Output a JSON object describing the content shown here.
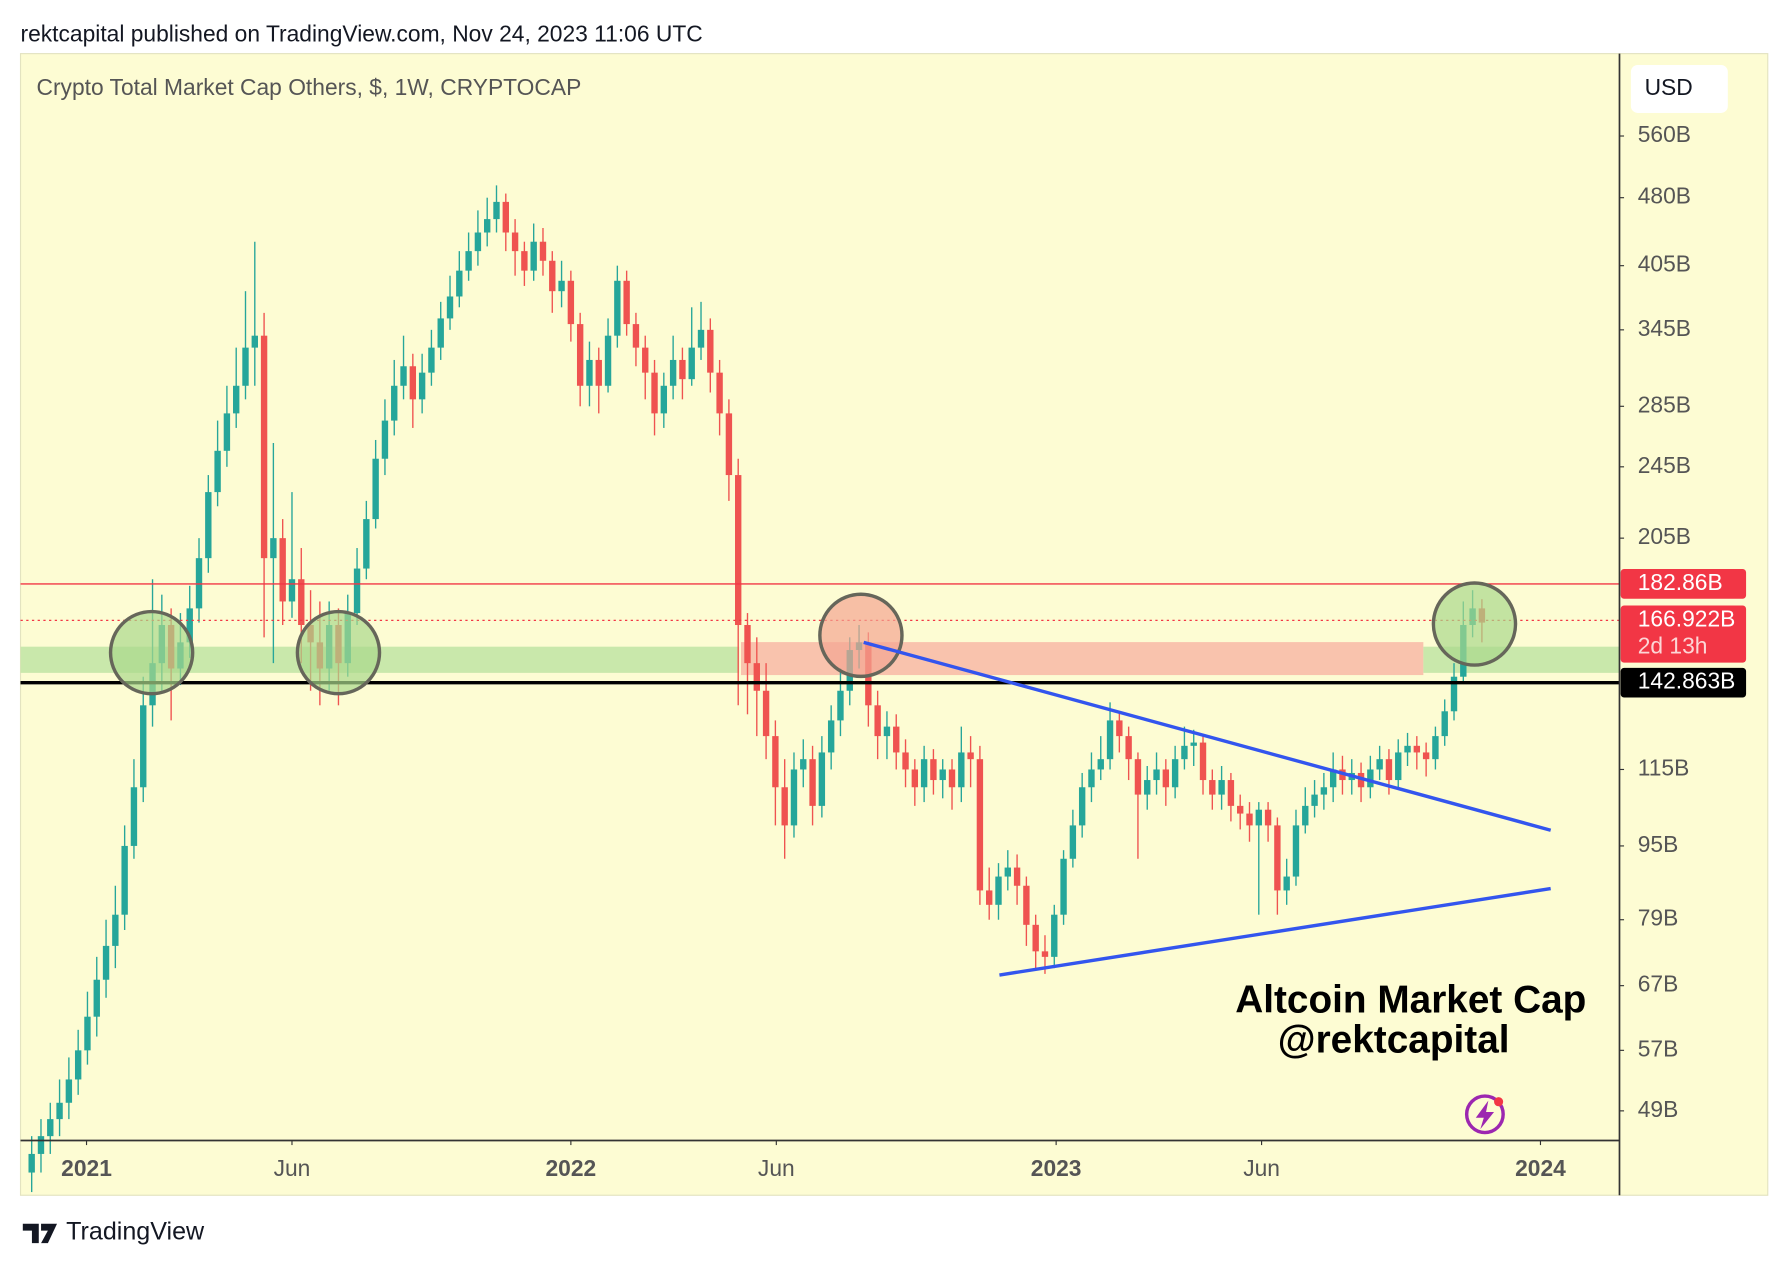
{
  "header": "rektcapital published on TradingView.com, Nov 24, 2023 11:06 UTC",
  "footer": "TradingView",
  "chart_data": {
    "type": "candlestick",
    "title": "Crypto Total Market Cap Others, $, 1W, CRYPTOCAP",
    "currency": "USD",
    "categories": [
      null,
      null,
      null,
      null,
      null,
      null,
      null,
      null,
      null,
      null,
      null,
      null,
      null,
      null,
      null,
      null,
      null,
      null,
      null,
      null,
      null,
      null,
      null,
      null,
      null,
      null,
      null,
      null,
      null,
      null,
      null,
      null,
      null,
      null,
      null,
      null,
      null,
      null,
      null,
      null,
      null,
      null,
      null,
      null,
      null,
      null,
      null,
      null,
      null,
      null,
      null,
      null,
      null,
      null,
      null,
      null,
      null,
      null,
      null,
      null,
      null,
      null,
      null,
      null,
      null,
      null,
      null,
      null,
      null,
      null,
      null,
      null,
      null,
      null,
      null,
      null,
      null,
      null,
      null,
      null,
      null,
      null,
      null,
      null,
      null,
      null,
      null,
      null,
      null,
      null,
      null,
      null,
      null,
      null,
      null,
      null,
      null,
      null,
      null,
      null,
      null,
      null,
      null,
      null,
      null,
      null,
      null,
      null,
      null,
      null,
      null,
      null,
      null,
      null,
      null,
      null,
      null,
      null,
      null,
      null,
      null,
      null,
      null,
      null,
      null,
      null,
      null,
      null,
      null,
      null,
      null,
      null,
      null,
      null,
      null,
      null,
      null,
      null,
      null,
      null,
      null,
      null,
      null,
      null,
      null,
      null,
      null,
      null,
      null,
      null,
      null,
      null,
      null,
      null,
      null,
      null,
      null
    ],
    "open": [
      42,
      44,
      46,
      48,
      50,
      53,
      57,
      62,
      68,
      74,
      80,
      95,
      110,
      135,
      150,
      165,
      148,
      158,
      172,
      195,
      230,
      255,
      280,
      300,
      330,
      340,
      195,
      205,
      175,
      185,
      165,
      158,
      148,
      165,
      150,
      170,
      190,
      215,
      250,
      275,
      300,
      315,
      290,
      310,
      330,
      355,
      375,
      400,
      420,
      440,
      455,
      475,
      440,
      420,
      400,
      430,
      410,
      380,
      390,
      350,
      300,
      320,
      300,
      340,
      390,
      350,
      330,
      310,
      280,
      300,
      320,
      305,
      330,
      345,
      310,
      280,
      240,
      165,
      150,
      140,
      125,
      110,
      100,
      115,
      118,
      105,
      120,
      130,
      140,
      155,
      158,
      135,
      125,
      128,
      120,
      115,
      110,
      118,
      112,
      115,
      110,
      120,
      118,
      85,
      82,
      88,
      90,
      86,
      78,
      73,
      72,
      80,
      92,
      100,
      110,
      115,
      118,
      130,
      125,
      118,
      108,
      112,
      115,
      110,
      118,
      122,
      123,
      112,
      108,
      112,
      105,
      103,
      100,
      104,
      100,
      85,
      88,
      100,
      105,
      108,
      110,
      115,
      112,
      114,
      110,
      115,
      118,
      112,
      120,
      122,
      120,
      118,
      125,
      133,
      145,
      165,
      172
    ],
    "high": [
      46,
      48,
      50,
      53,
      56,
      60,
      66,
      72,
      79,
      86,
      100,
      118,
      145,
      185,
      178,
      172,
      170,
      182,
      205,
      240,
      275,
      300,
      330,
      380,
      430,
      360,
      260,
      215,
      230,
      200,
      180,
      175,
      175,
      172,
      178,
      200,
      225,
      262,
      290,
      320,
      340,
      325,
      325,
      345,
      370,
      395,
      420,
      440,
      465,
      480,
      495,
      485,
      455,
      430,
      450,
      445,
      420,
      410,
      400,
      360,
      335,
      330,
      355,
      405,
      400,
      360,
      340,
      320,
      310,
      340,
      330,
      365,
      370,
      355,
      320,
      290,
      250,
      170,
      160,
      150,
      130,
      118,
      120,
      124,
      122,
      125,
      135,
      148,
      160,
      165,
      162,
      140,
      133,
      132,
      124,
      118,
      122,
      121,
      118,
      118,
      128,
      125,
      122,
      90,
      91,
      94,
      93,
      88,
      80,
      76,
      82,
      94,
      104,
      114,
      120,
      125,
      136,
      133,
      128,
      120,
      116,
      120,
      118,
      122,
      128,
      127,
      125,
      115,
      116,
      114,
      108,
      106,
      106,
      106,
      102,
      92,
      104,
      110,
      112,
      114,
      120,
      119,
      118,
      117,
      119,
      122,
      121,
      124,
      126,
      125,
      123,
      128,
      137,
      150,
      175,
      180,
      176
    ],
    "low": [
      40,
      42,
      44,
      46,
      48,
      51,
      55,
      59,
      65,
      70,
      77,
      92,
      106,
      128,
      140,
      130,
      142,
      152,
      166,
      188,
      222,
      245,
      270,
      290,
      300,
      160,
      150,
      165,
      168,
      150,
      140,
      135,
      140,
      135,
      145,
      165,
      185,
      210,
      240,
      265,
      290,
      270,
      280,
      300,
      320,
      345,
      365,
      390,
      405,
      425,
      440,
      420,
      395,
      385,
      390,
      395,
      360,
      365,
      335,
      285,
      285,
      280,
      295,
      330,
      340,
      315,
      290,
      265,
      270,
      290,
      290,
      300,
      320,
      295,
      265,
      225,
      135,
      132,
      125,
      118,
      100,
      92,
      97,
      110,
      100,
      102,
      115,
      125,
      135,
      148,
      128,
      118,
      118,
      115,
      110,
      105,
      106,
      108,
      107,
      104,
      106,
      110,
      82,
      79,
      79,
      85,
      82,
      74,
      70,
      69,
      70,
      78,
      90,
      97,
      106,
      112,
      115,
      120,
      112,
      92,
      104,
      108,
      105,
      107,
      115,
      116,
      108,
      104,
      104,
      101,
      99,
      96,
      80,
      96,
      80,
      82,
      86,
      98,
      102,
      104,
      106,
      108,
      108,
      106,
      107,
      112,
      108,
      110,
      116,
      115,
      113,
      115,
      122,
      130,
      143,
      160,
      158
    ],
    "close": [
      44,
      46,
      48,
      50,
      53,
      57,
      62,
      68,
      74,
      80,
      95,
      110,
      135,
      150,
      165,
      148,
      158,
      172,
      195,
      230,
      255,
      280,
      300,
      330,
      340,
      195,
      205,
      175,
      185,
      165,
      158,
      148,
      165,
      150,
      170,
      190,
      215,
      250,
      275,
      300,
      315,
      290,
      310,
      330,
      355,
      375,
      400,
      420,
      440,
      455,
      475,
      440,
      420,
      400,
      430,
      410,
      380,
      390,
      350,
      300,
      320,
      300,
      340,
      390,
      350,
      330,
      310,
      280,
      300,
      320,
      305,
      330,
      345,
      310,
      280,
      240,
      165,
      150,
      140,
      125,
      110,
      100,
      115,
      118,
      105,
      120,
      130,
      140,
      155,
      158,
      135,
      125,
      128,
      120,
      115,
      110,
      118,
      112,
      115,
      110,
      120,
      118,
      85,
      82,
      88,
      90,
      86,
      78,
      73,
      72,
      80,
      92,
      100,
      110,
      115,
      118,
      130,
      125,
      118,
      108,
      112,
      115,
      110,
      118,
      122,
      123,
      112,
      108,
      112,
      105,
      103,
      100,
      104,
      100,
      85,
      88,
      100,
      105,
      108,
      110,
      115,
      112,
      114,
      110,
      115,
      118,
      112,
      120,
      122,
      120,
      118,
      125,
      133,
      145,
      165,
      172,
      166
    ],
    "up_color": "#26a69a",
    "down_color": "#ef5350",
    "log_scale": true,
    "xlim": [
      -1.2,
      170.8
    ],
    "xticks": [
      {
        "value": 5.9,
        "label": "2021"
      },
      {
        "value": 28.0,
        "label": "Jun"
      },
      {
        "value": 58.0,
        "label": "2022"
      },
      {
        "value": 80.1,
        "label": "Jun"
      },
      {
        "value": 110.2,
        "label": "2023"
      },
      {
        "value": 132.3,
        "label": "Jun"
      },
      {
        "value": 162.3,
        "label": "2024"
      }
    ],
    "ylim": [
      45.5,
      688
    ],
    "yticks": [
      {
        "value": 560,
        "label": "560B"
      },
      {
        "value": 480,
        "label": "480B"
      },
      {
        "value": 405,
        "label": "405B"
      },
      {
        "value": 345,
        "label": "345B"
      },
      {
        "value": 285,
        "label": "285B"
      },
      {
        "value": 245,
        "label": "245B"
      },
      {
        "value": 205,
        "label": "205B"
      },
      {
        "value": 115,
        "label": "115B"
      },
      {
        "value": 95,
        "label": "95B"
      },
      {
        "value": 79,
        "label": "79B"
      },
      {
        "value": 67,
        "label": "67B"
      },
      {
        "value": 57,
        "label": "57B"
      },
      {
        "value": 49,
        "label": "49B"
      }
    ],
    "levels": [
      {
        "value": 182.86,
        "label": "182.86B",
        "color": "#f23645",
        "style": "solid"
      },
      {
        "value": 166.922,
        "label": "166.922B",
        "countdown": "2d 13h",
        "color": "#f23645",
        "style": "dotted"
      },
      {
        "value": 142.863,
        "label": "142.863B",
        "color": "#000000",
        "style": "thick"
      }
    ],
    "zones": [
      {
        "from": -1.2,
        "to": 76.1,
        "low": 146.4,
        "high": 156.3,
        "color": "#c3e5a6"
      },
      {
        "from": 76.3,
        "to": 149.7,
        "low": 145.6,
        "high": 158.1,
        "color": "#f8bda8"
      },
      {
        "from": 149.7,
        "to": 170.8,
        "low": 146.4,
        "high": 156.3,
        "color": "#c3e5a6"
      }
    ],
    "circles": [
      {
        "x": 12.9,
        "y": 154,
        "color": "#a9d98c"
      },
      {
        "x": 33.0,
        "y": 154,
        "color": "#a9d98c"
      },
      {
        "x": 89.2,
        "y": 160.8,
        "color": "#f4a592"
      },
      {
        "x": 155.2,
        "y": 165.4,
        "color": "#a9d98c"
      }
    ],
    "trendlines": [
      {
        "x": [
          89.5,
          163.4
        ],
        "y": [
          158,
          98.8
        ],
        "color": "#3355ee"
      },
      {
        "x": [
          104.1,
          163.4
        ],
        "y": [
          68.8,
          85.4
        ],
        "color": "#3355ee"
      }
    ],
    "annotations": [
      "Altcoin Market Cap",
      "@rektcapital"
    ]
  }
}
